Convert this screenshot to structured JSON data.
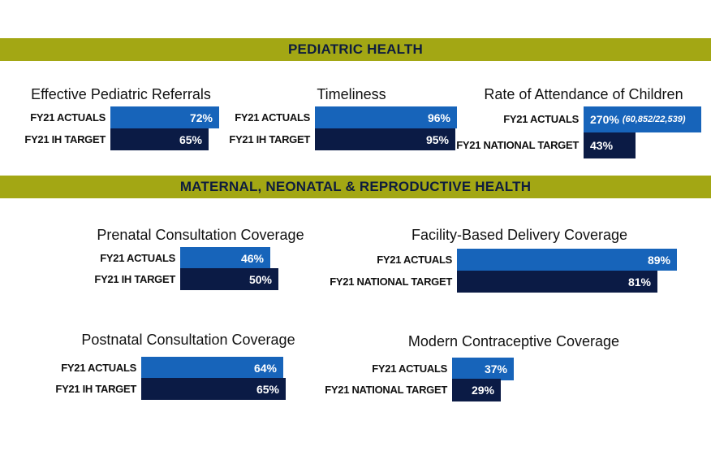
{
  "colors": {
    "banner": "#A3A714",
    "banner_text": "#0E1C3E",
    "actual": "#1764BA",
    "target": "#0B1B45"
  },
  "sections": [
    {
      "title": "PEDIATRIC HEALTH"
    },
    {
      "title": "MATERNAL, NEONATAL & REPRODUCTIVE HEALTH"
    }
  ],
  "chart_data": [
    {
      "type": "bar",
      "orientation": "horizontal",
      "section": "PEDIATRIC HEALTH",
      "title": "Effective Pediatric Referrals",
      "categories": [
        "FY21 ACTUALS",
        "FY21 IH TARGET"
      ],
      "values": [
        72,
        65
      ],
      "labels": [
        "72%",
        "65%"
      ],
      "unit": "%"
    },
    {
      "type": "bar",
      "orientation": "horizontal",
      "section": "PEDIATRIC HEALTH",
      "title": "Timeliness",
      "categories": [
        "FY21 ACTUALS",
        "FY21 IH TARGET"
      ],
      "values": [
        96,
        95
      ],
      "labels": [
        "96%",
        "95%"
      ],
      "unit": "%"
    },
    {
      "type": "bar",
      "orientation": "horizontal",
      "section": "PEDIATRIC HEALTH",
      "title": "Rate of Attendance of Children",
      "categories": [
        "FY21 ACTUALS",
        "FY21 NATIONAL TARGET"
      ],
      "values": [
        270,
        43
      ],
      "labels": [
        "270%",
        "43%"
      ],
      "annotations": [
        "(60,852/22,539)",
        ""
      ],
      "unit": "%"
    },
    {
      "type": "bar",
      "orientation": "horizontal",
      "section": "MATERNAL, NEONATAL & REPRODUCTIVE HEALTH",
      "title": "Prenatal Consultation Coverage",
      "categories": [
        "FY21 ACTUALS",
        "FY21 IH TARGET"
      ],
      "values": [
        46,
        50
      ],
      "labels": [
        "46%",
        "50%"
      ],
      "unit": "%"
    },
    {
      "type": "bar",
      "orientation": "horizontal",
      "section": "MATERNAL, NEONATAL & REPRODUCTIVE HEALTH",
      "title": "Facility-Based Delivery Coverage",
      "categories": [
        "FY21 ACTUALS",
        "FY21 NATIONAL TARGET"
      ],
      "values": [
        89,
        81
      ],
      "labels": [
        "89%",
        "81%"
      ],
      "unit": "%"
    },
    {
      "type": "bar",
      "orientation": "horizontal",
      "section": "MATERNAL, NEONATAL & REPRODUCTIVE HEALTH",
      "title": "Postnatal Consultation Coverage",
      "categories": [
        "FY21 ACTUALS",
        "FY21 IH TARGET"
      ],
      "values": [
        64,
        65
      ],
      "labels": [
        "64%",
        "65%"
      ],
      "unit": "%"
    },
    {
      "type": "bar",
      "orientation": "horizontal",
      "section": "MATERNAL, NEONATAL & REPRODUCTIVE HEALTH",
      "title": "Modern Contraceptive Coverage",
      "categories": [
        "FY21 ACTUALS",
        "FY21 NATIONAL TARGET"
      ],
      "values": [
        37,
        29
      ],
      "labels": [
        "37%",
        "29%"
      ],
      "unit": "%"
    }
  ]
}
